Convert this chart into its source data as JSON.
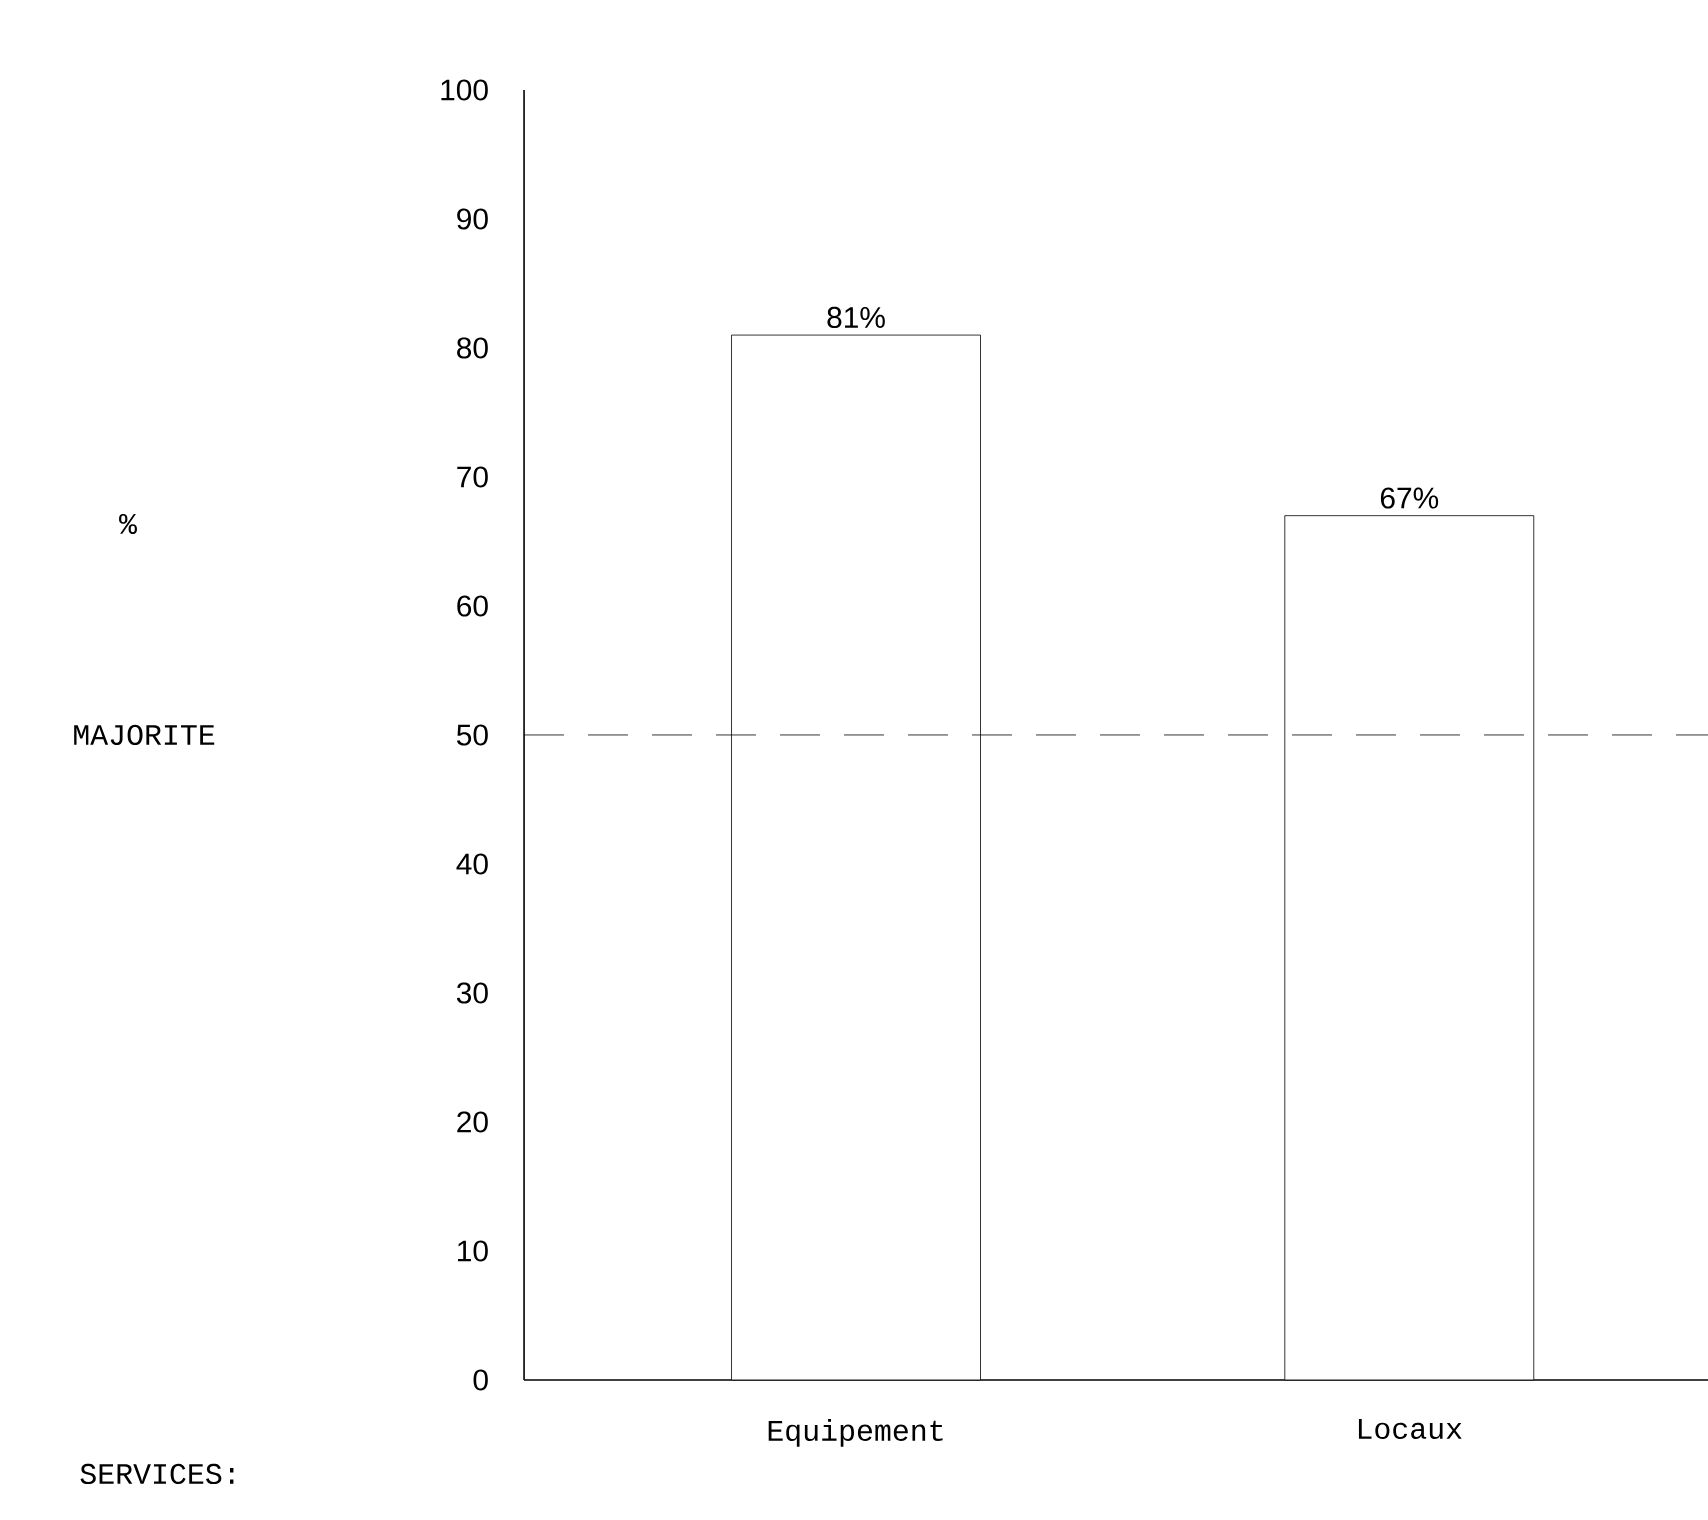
{
  "chart_data": {
    "type": "bar",
    "annotations": [
      "%",
      "SERVICES:"
    ],
    "categories": [
      "Equipement",
      "Locaux"
    ],
    "values": [
      81,
      67
    ],
    "value_labels": [
      "81%",
      "67%"
    ],
    "color": "#000000",
    "ylim": [
      0,
      100
    ],
    "yticks": [
      0,
      10,
      20,
      30,
      40,
      50,
      60,
      70,
      80,
      90,
      100
    ],
    "ref_lines": [
      {
        "axis": "y",
        "value": 50,
        "label": "MAJORITE",
        "line_style": "dashed"
      }
    ]
  }
}
